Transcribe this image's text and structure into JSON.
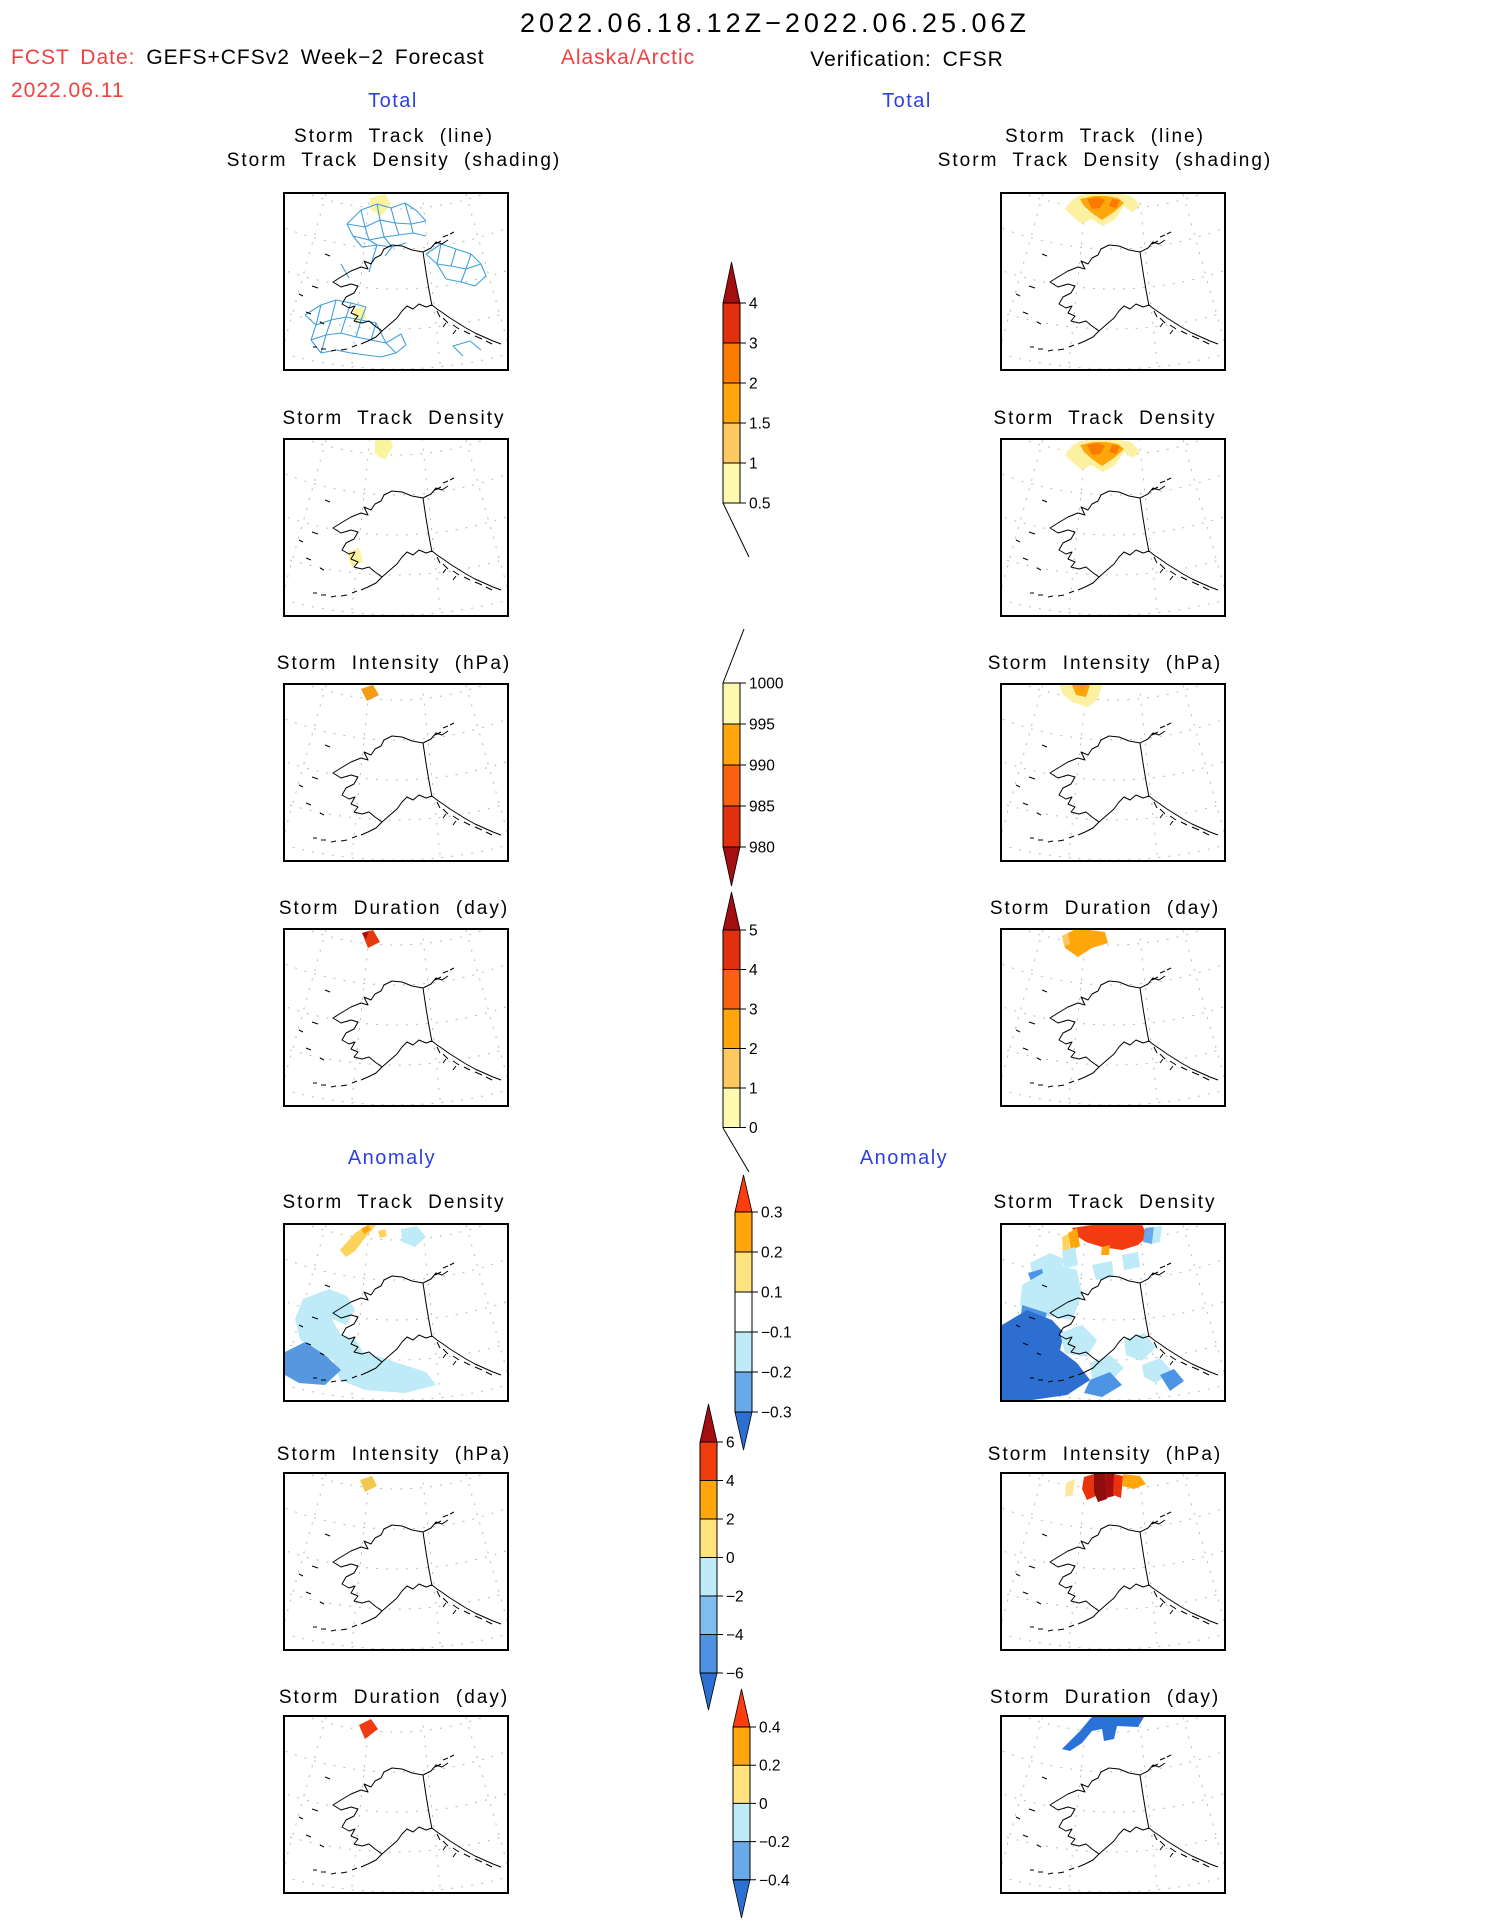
{
  "header": {
    "period": "2022.06.18.12Z−2022.06.25.06Z",
    "fcst_label": "FCST Date:",
    "fcst_model": "GEFS+CFSv2 Week−2 Forecast",
    "fcst_issue_date": "2022.06.11",
    "region": "Alaska/Arctic",
    "verification": "Verification: CFSR"
  },
  "sections": {
    "total": "Total",
    "anomaly": "Anomaly"
  },
  "rows": [
    {
      "id": "track_total",
      "titles": [
        "Storm Track (line)",
        "Storm Track Density (shading)"
      ]
    },
    {
      "id": "density_total",
      "titles": [
        "Storm Track Density"
      ]
    },
    {
      "id": "intensity_total",
      "titles": [
        "Storm Intensity (hPa)"
      ]
    },
    {
      "id": "duration_total",
      "titles": [
        "Storm Duration (day)"
      ]
    },
    {
      "id": "density_anom",
      "titles": [
        "Storm Track Density"
      ]
    },
    {
      "id": "intensity_anom",
      "titles": [
        "Storm Intensity (hPa)"
      ]
    },
    {
      "id": "duration_anom",
      "titles": [
        "Storm Duration (day)"
      ]
    }
  ],
  "colors": {
    "heading_red": "#F04141",
    "heading_blue": "#2F3FE2",
    "track_line_blue": "#3F9FDD",
    "coastline_black": "#000000",
    "graticule_gray": "#b9b9b9"
  },
  "chart_data": {
    "type": "heatmap",
    "description": "Week-2 storm-track forecast (GEFS+CFSv2) versus CFSR verification map panels over the Alaska/Arctic domain; left column = forecast, right column = verification; six shared vertical colorbars in the middle.",
    "colorbars": [
      {
        "id": "storm_track_density_total",
        "tick_labels_top_to_bottom": [
          "4",
          "3",
          "2",
          "1.5",
          "1",
          "0.5"
        ],
        "segment_colors_top_to_bottom": [
          "#E2300E",
          "#FB7B00",
          "#FFA60D",
          "#FEC961",
          "#FEF9B0"
        ],
        "over_arrow_color": "#A50E10"
      },
      {
        "id": "storm_intensity_total",
        "tick_labels_top_to_bottom": [
          "1000",
          "995",
          "990",
          "985",
          "980"
        ],
        "segment_colors_top_to_bottom": [
          "#FEF9B0",
          "#FFA60D",
          "#F96011",
          "#E2300E"
        ],
        "under_arrow_color": "#A50E10"
      },
      {
        "id": "storm_duration_total",
        "tick_labels_top_to_bottom": [
          "5",
          "4",
          "3",
          "2",
          "1",
          "0"
        ],
        "segment_colors_top_to_bottom": [
          "#E2300E",
          "#F96011",
          "#FFA60D",
          "#FEC961",
          "#FEF9B0"
        ],
        "over_arrow_color": "#A50E10"
      },
      {
        "id": "storm_track_density_anomaly",
        "tick_labels_top_to_bottom": [
          "0.3",
          "0.2",
          "0.1",
          "−0.1",
          "−0.2",
          "−0.3"
        ],
        "segment_colors_top_to_bottom": [
          "#FFA60D",
          "#FEE37E",
          "#FFFFFF",
          "#BEEBF7",
          "#69A9E9"
        ],
        "over_arrow_color": "#FB3D0F",
        "under_arrow_color": "#2C70D2"
      },
      {
        "id": "storm_intensity_anomaly",
        "tick_labels_top_to_bottom": [
          "6",
          "4",
          "2",
          "0",
          "−2",
          "−4",
          "−6"
        ],
        "segment_colors_top_to_bottom": [
          "#F23C10",
          "#FFA60D",
          "#FEE37E",
          "#BEEBF7",
          "#7FBDEF",
          "#4E93E3"
        ],
        "over_arrow_color": "#A50E10",
        "under_arrow_color": "#2C70D2"
      },
      {
        "id": "storm_duration_anomaly",
        "tick_labels_top_to_bottom": [
          "0.4",
          "0.2",
          "0",
          "−0.2",
          "−0.4"
        ],
        "segment_colors_top_to_bottom": [
          "#FFA60D",
          "#FEE37E",
          "#BEEBF7",
          "#69A9E9"
        ],
        "over_arrow_color": "#FB3D0F",
        "under_arrow_color": "#2C70D2"
      }
    ],
    "panel_summaries": [
      {
        "row": "Storm Track (line) / Storm Track Density (shading)",
        "forecast": "Dense web of blue storm-track lines over the Chukchi/Beaufort seas and Bering Sea; faint pale-yellow density (0.5–1) patches at the northern edge and southwest.",
        "verification": "Yellow-to-orange density maximum (up to ~2) along the Arctic coast north of Alaska; no track lines shown."
      },
      {
        "row": "Storm Track Density",
        "forecast": "Pale-yellow (0.5–1) patches at the northern edge and in the southwest Bering Sea.",
        "verification": "Yellow-to-orange maximum (0.5–2) along the Arctic margin."
      },
      {
        "row": "Storm Intensity (hPa)",
        "forecast": "Single orange cell (~990–995 hPa) at the Arctic edge.",
        "verification": "Yellow and orange cells (~990–1000 hPa) at the Arctic edge."
      },
      {
        "row": "Storm Duration (day)",
        "forecast": "Single red cell (~4–5 days) at the Arctic edge.",
        "verification": "Orange region (~2–3 days) at the Arctic edge."
      },
      {
        "row": "Storm Track Density anomaly",
        "forecast": "Weak positive gold streak (+0.1 to +0.3) near the pole; widespread weak negative (−0.1 to −0.3) over the Bering Sea and Gulf of Alaska with a stronger blue corner (< −0.2).",
        "verification": "Strong positive (> +0.3, red) band along the Arctic edge; strong negative (< −0.3, blue) fan over the Bering Sea and Gulf of Alaska with scattered light-cyan cells."
      },
      {
        "row": "Storm Intensity anomaly",
        "forecast": "Small gold cell (+2 hPa or less) at the Arctic edge.",
        "verification": "Dark-red cells (> +6 hPa) with red and orange neighbors (+2 to +6) and a pale-yellow sliver at the Arctic edge."
      },
      {
        "row": "Storm Duration anomaly",
        "forecast": "Small red cell (> +0.4 day) at the Arctic edge.",
        "verification": "Blue region (< −0.4 day) along the Arctic edge."
      }
    ]
  }
}
